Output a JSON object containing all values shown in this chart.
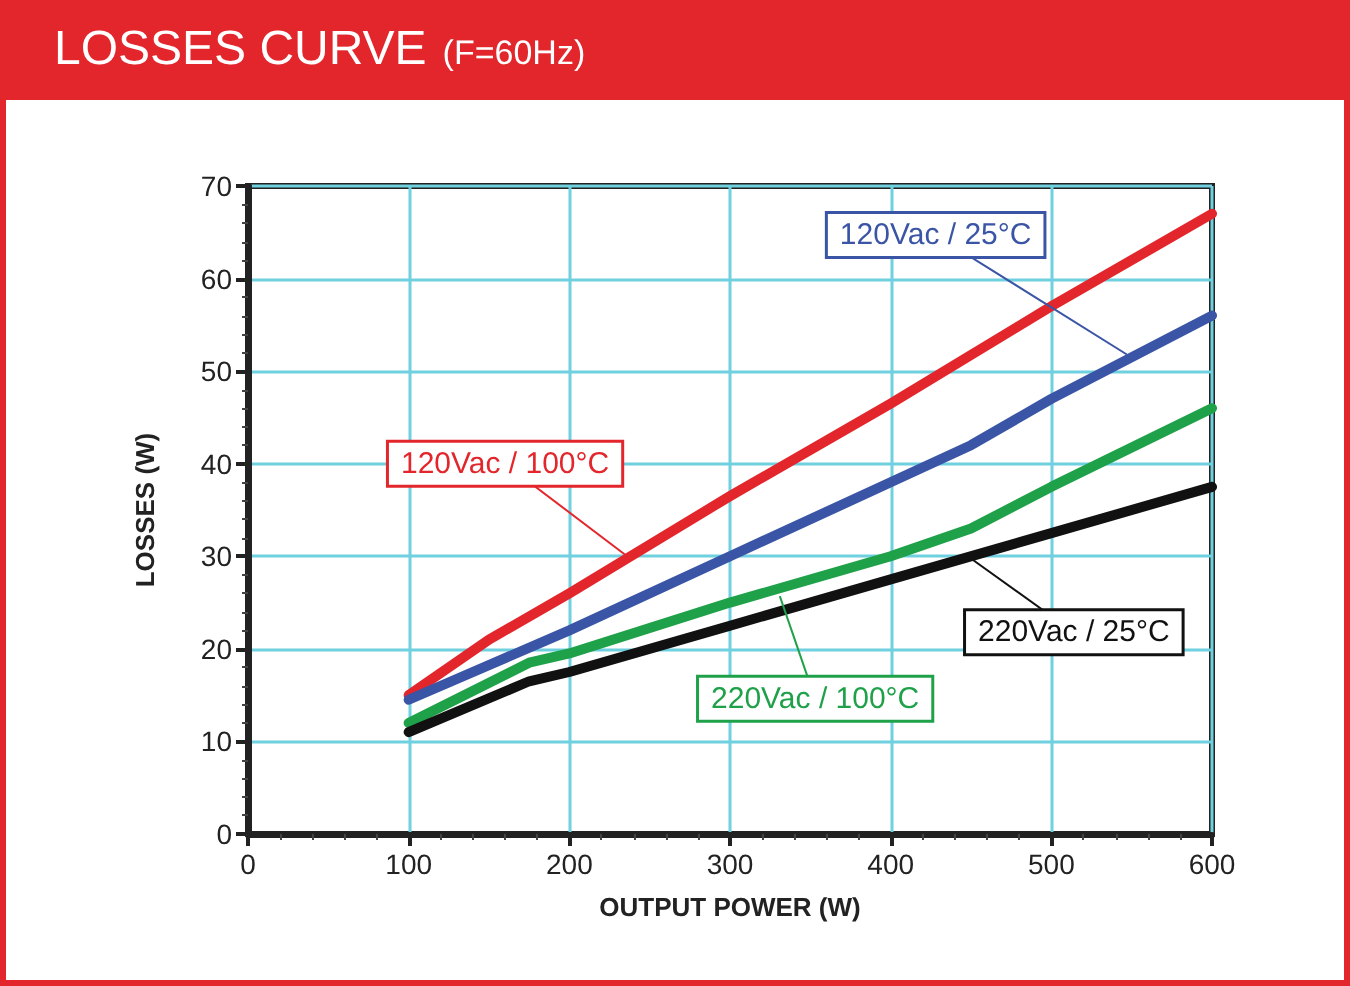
{
  "chart_data": {
    "type": "line",
    "title": "LOSSES CURVE",
    "subtitle": "(F=60Hz)",
    "xlabel": "OUTPUT POWER (W)",
    "ylabel": "LOSSES (W)",
    "xlim": [
      0,
      600
    ],
    "xticks": [
      0,
      100,
      200,
      300,
      400,
      500,
      600
    ],
    "ylim": [
      0,
      70
    ],
    "yticks": [
      0,
      10,
      20,
      30,
      40,
      50,
      60,
      70
    ],
    "grid": true,
    "legend": false,
    "marker": "none",
    "line_style": "solid",
    "series": [
      {
        "name": "120Vac / 100°C",
        "color": "#e3262c",
        "x": [
          100,
          150,
          200,
          300,
          400,
          500,
          600
        ],
        "values": [
          15,
          21,
          26,
          36.5,
          46.5,
          57,
          67
        ]
      },
      {
        "name": "120Vac / 25°C",
        "color": "#3a55a6",
        "x": [
          100,
          200,
          300,
          400,
          450,
          500,
          600
        ],
        "values": [
          14.5,
          22,
          30,
          38,
          42,
          47,
          56
        ]
      },
      {
        "name": "220Vac / 100°C",
        "color": "#1fa14a",
        "x": [
          100,
          175,
          200,
          300,
          400,
          450,
          500,
          600
        ],
        "values": [
          12,
          18.5,
          19.5,
          25,
          30,
          33,
          37.5,
          46
        ]
      },
      {
        "name": "220Vac / 25°C",
        "color": "#111111",
        "x": [
          100,
          175,
          200,
          300,
          400,
          500,
          600
        ],
        "values": [
          11,
          16.5,
          17.5,
          22.5,
          27.5,
          32.5,
          37.5
        ]
      }
    ]
  }
}
